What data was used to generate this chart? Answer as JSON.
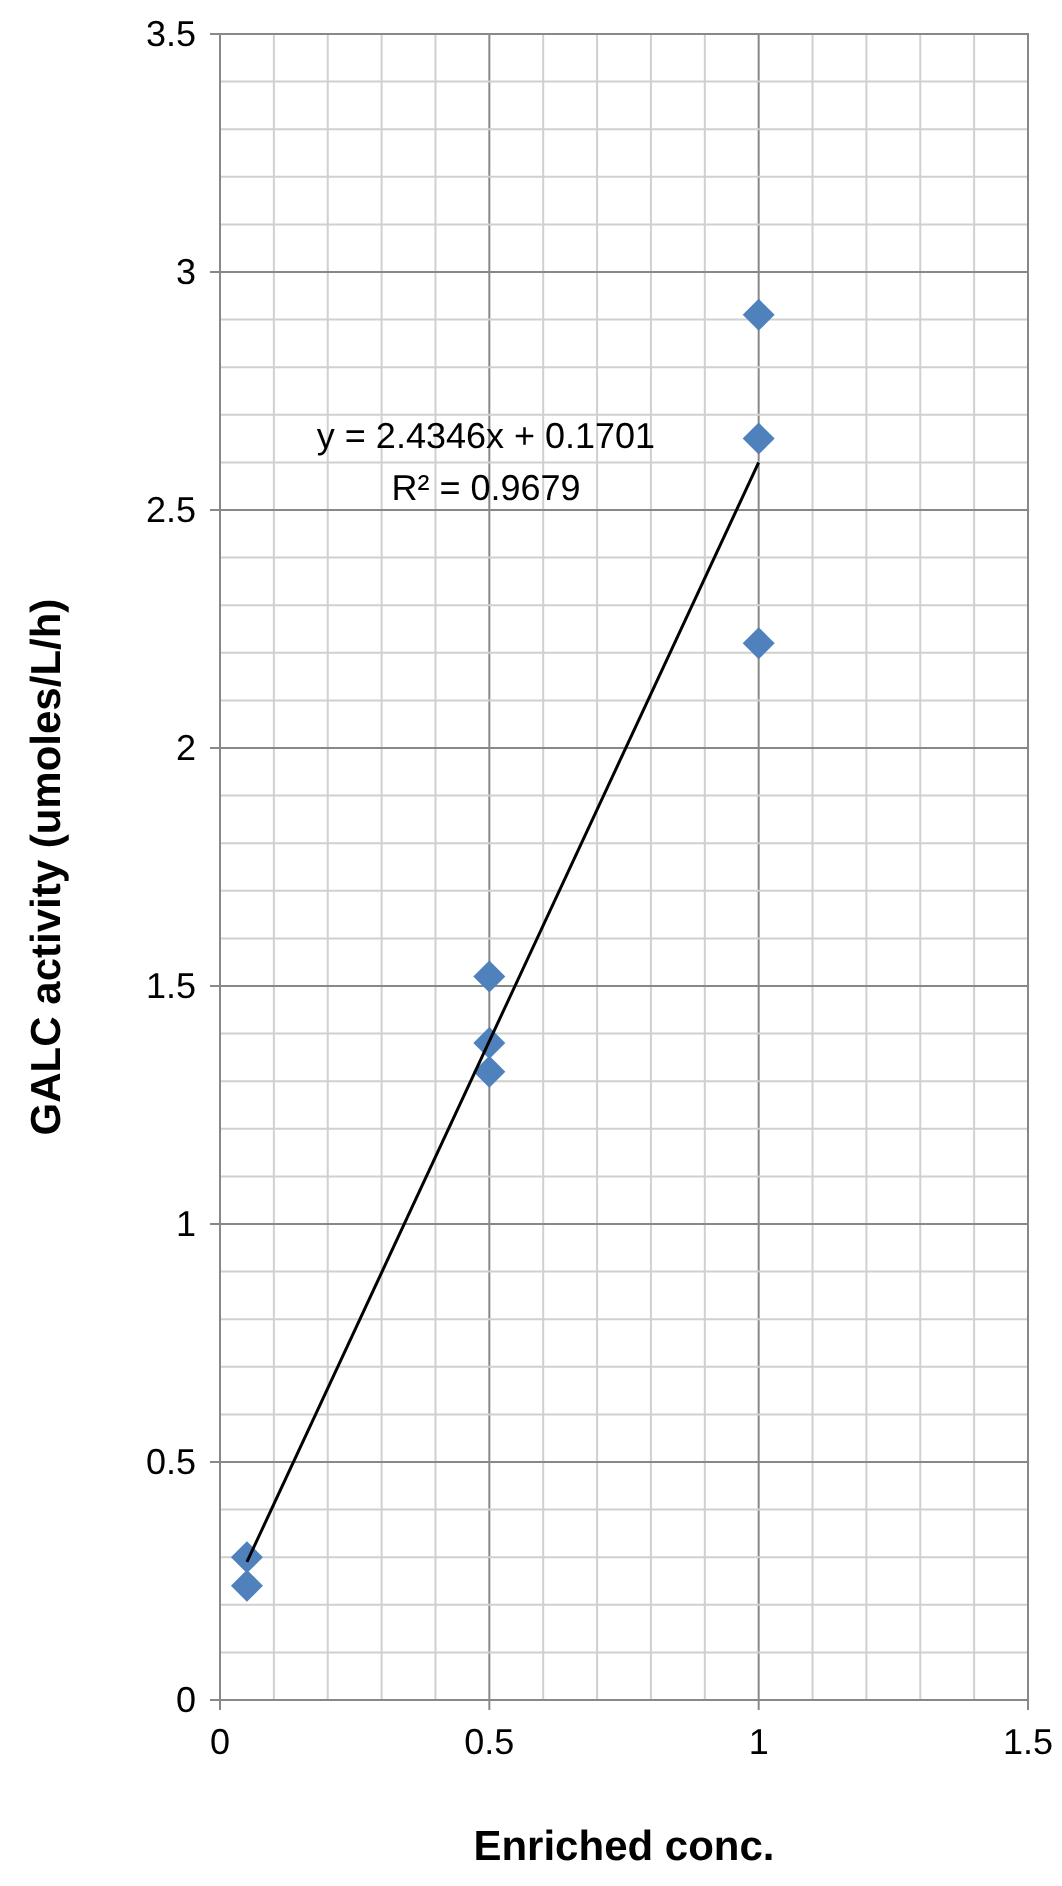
{
  "chart_data": {
    "type": "scatter",
    "xlabel": "Enriched conc.",
    "ylabel": "GALC activity (umoles/L/h)",
    "series": [
      {
        "type": "scatter",
        "color": "#4f81bd",
        "marker": "diamond",
        "x": [
          0.05,
          0.05,
          0.5,
          0.5,
          0.5,
          1,
          1,
          1
        ],
        "values": [
          0.3,
          0.24,
          1.52,
          1.38,
          1.32,
          2.91,
          2.65,
          2.22
        ]
      },
      {
        "type": "line",
        "color": "#000000",
        "marker": "none",
        "x": [
          0.05,
          1
        ],
        "values": [
          0.29,
          2.6
        ]
      }
    ],
    "annotations": [
      "y = 2.4346x + 0.1701",
      "R² = 0.9679"
    ],
    "xlim": [
      0,
      1.5
    ],
    "ylim": [
      0,
      3.5
    ],
    "grid": true,
    "xticks": [
      0,
      {
        "value": 0.1,
        "label": null
      },
      {
        "value": 0.2,
        "label": null
      },
      {
        "value": 0.3,
        "label": null
      },
      {
        "value": 0.4,
        "label": null
      },
      0.5,
      {
        "value": 0.6,
        "label": null
      },
      {
        "value": 0.7,
        "label": null
      },
      {
        "value": 0.8,
        "label": null
      },
      {
        "value": 0.9,
        "label": null
      },
      1,
      {
        "value": 1.1,
        "label": null
      },
      {
        "value": 1.2,
        "label": null
      },
      {
        "value": 1.3,
        "label": null
      },
      {
        "value": 1.4,
        "label": null
      },
      1.5
    ],
    "yticks": [
      0,
      {
        "value": 0.1,
        "label": null
      },
      {
        "value": 0.2,
        "label": null
      },
      {
        "value": 0.3,
        "label": null
      },
      {
        "value": 0.4,
        "label": null
      },
      0.5,
      {
        "value": 0.6,
        "label": null
      },
      {
        "value": 0.7,
        "label": null
      },
      {
        "value": 0.8,
        "label": null
      },
      {
        "value": 0.9,
        "label": null
      },
      1,
      {
        "value": 1.1,
        "label": null
      },
      {
        "value": 1.2,
        "label": null
      },
      {
        "value": 1.3,
        "label": null
      },
      {
        "value": 1.4,
        "label": null
      },
      1.5,
      {
        "value": 1.6,
        "label": null
      },
      {
        "value": 1.7,
        "label": null
      },
      {
        "value": 1.8,
        "label": null
      },
      {
        "value": 1.9,
        "label": null
      },
      2,
      {
        "value": 2.1,
        "label": null
      },
      {
        "value": 2.2,
        "label": null
      },
      {
        "value": 2.3,
        "label": null
      },
      {
        "value": 2.4,
        "label": null
      },
      2.5,
      {
        "value": 2.6,
        "label": null
      },
      {
        "value": 2.7,
        "label": null
      },
      {
        "value": 2.8,
        "label": null
      },
      {
        "value": 2.9,
        "label": null
      },
      3,
      {
        "value": 3.1,
        "label": null
      },
      {
        "value": 3.2,
        "label": null
      },
      {
        "value": 3.3,
        "label": null
      },
      {
        "value": 3.4,
        "label": null
      },
      3.5
    ]
  }
}
